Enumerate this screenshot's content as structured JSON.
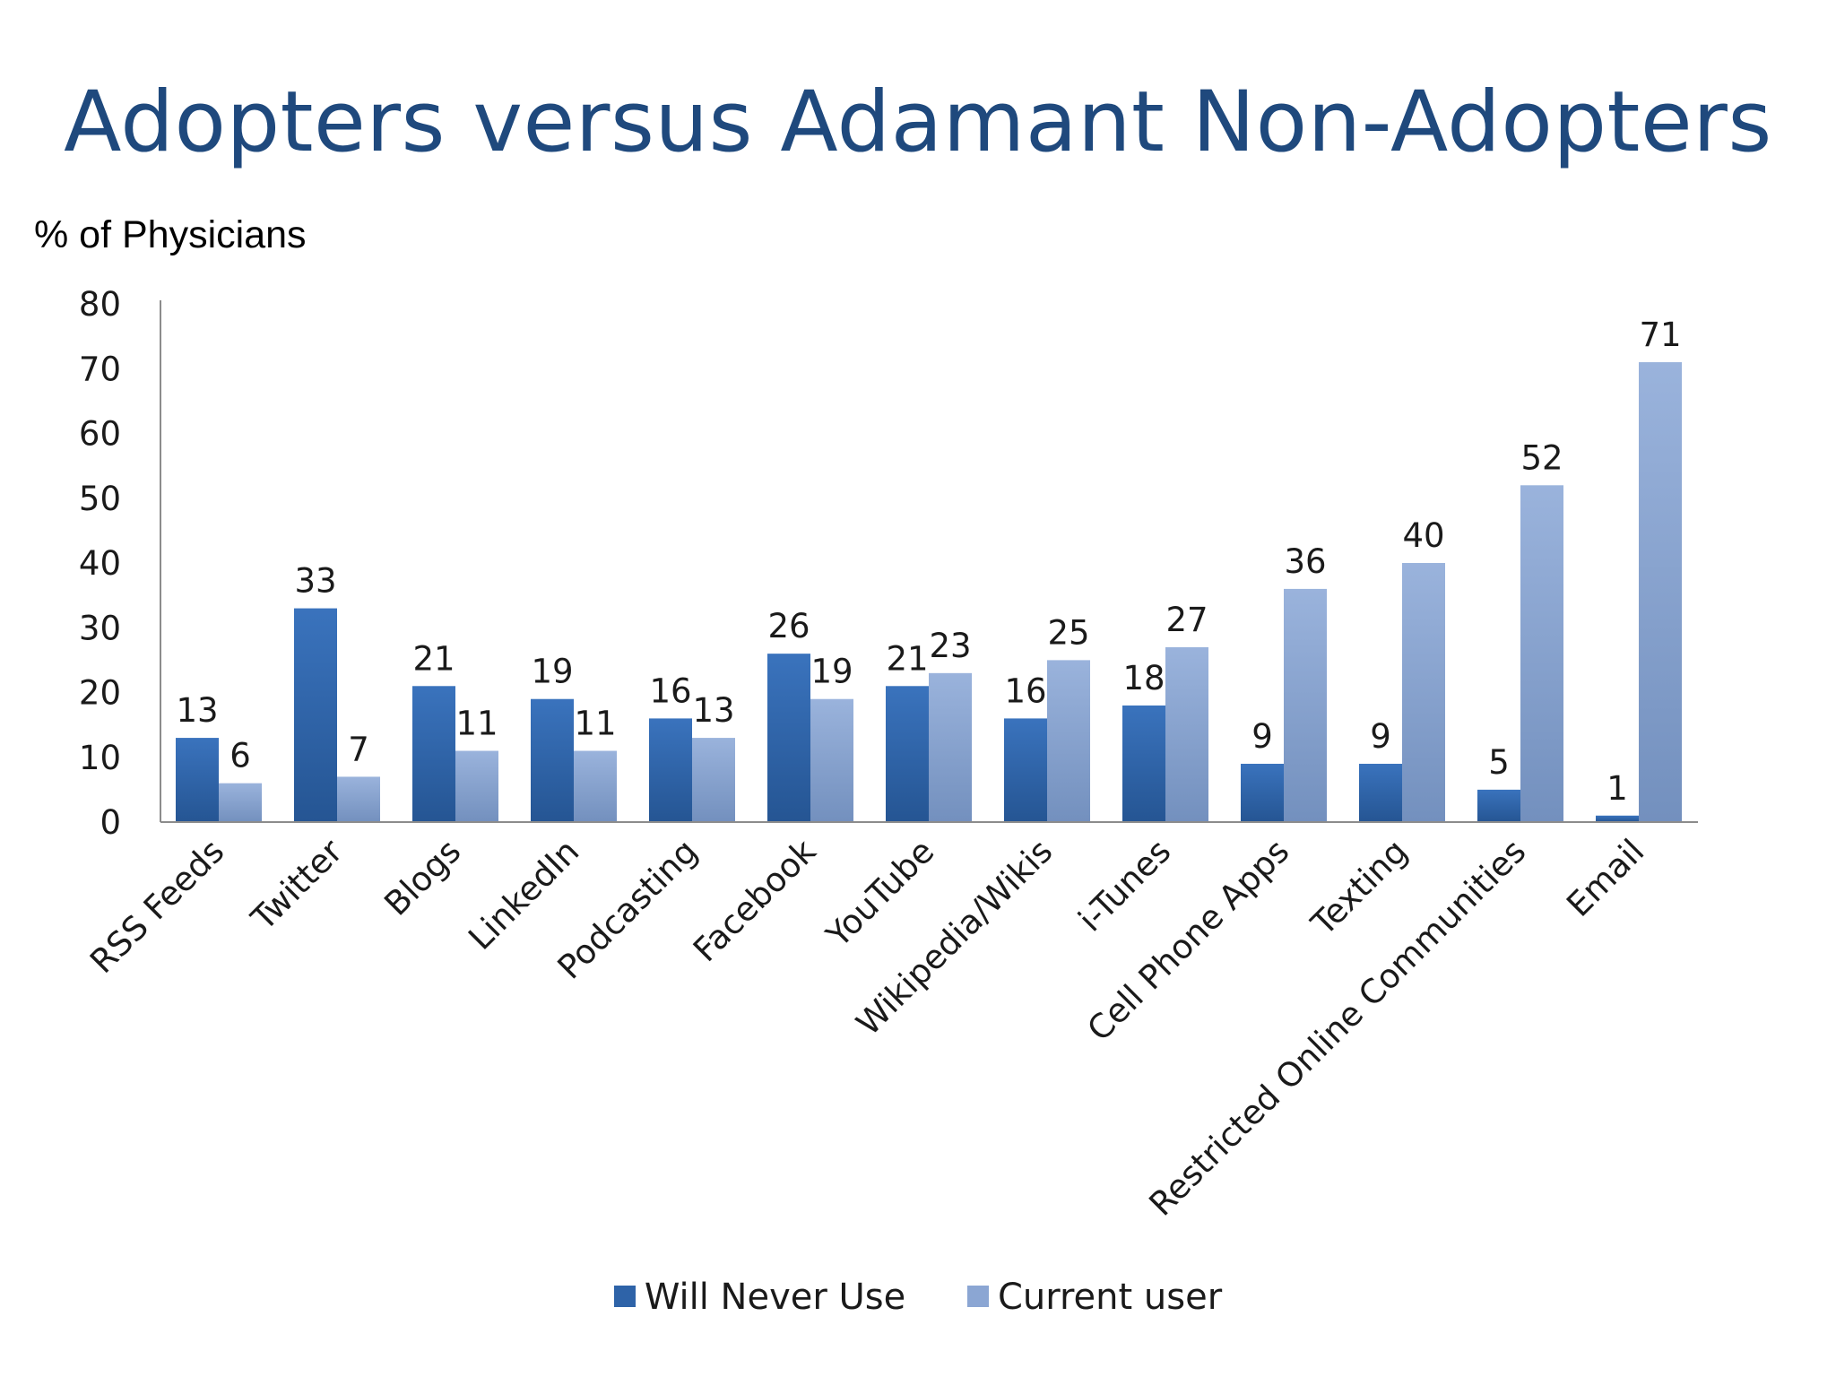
{
  "slide": {
    "title": "Adopters versus Adamant Non-Adopters",
    "y_axis_caption": "% of Physicians"
  },
  "colors": {
    "title": "#1f497d",
    "will_never_use": "#2e63a8",
    "current_user": "#8ba6d3",
    "axis": "#8c8c8c"
  },
  "chart_data": {
    "type": "bar",
    "ylim": [
      0,
      80
    ],
    "yticks": [
      0,
      10,
      20,
      30,
      40,
      50,
      60,
      70,
      80
    ],
    "categories": [
      "RSS Feeds",
      "Twitter",
      "Blogs",
      "LinkedIn",
      "Podcasting",
      "Facebook",
      "YouTube",
      "Wikipedia/Wikis",
      "i-Tunes",
      "Cell Phone Apps",
      "Texting",
      "Restricted Online Communities",
      "Email"
    ],
    "series": [
      {
        "name": "Will Never Use",
        "values": [
          13,
          33,
          21,
          19,
          16,
          26,
          21,
          16,
          18,
          9,
          9,
          5,
          1
        ]
      },
      {
        "name": "Current user",
        "values": [
          6,
          7,
          11,
          11,
          13,
          19,
          23,
          25,
          27,
          36,
          40,
          52,
          71
        ]
      }
    ],
    "grid": false,
    "legend_position": "bottom"
  }
}
